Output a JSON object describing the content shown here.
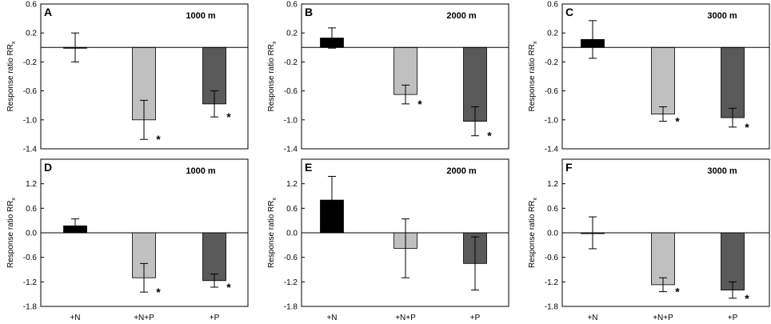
{
  "chart_data": {
    "type": "bar",
    "categories": [
      "+N",
      "+N+P",
      "+P"
    ],
    "ylabel": "Response ratio RR",
    "ylabel_subscript": "x",
    "bar_colors": [
      "#000000",
      "#c0c0c0",
      "#595959"
    ],
    "significance_marker": "*",
    "panels": [
      {
        "id": "A",
        "title": "1000 m",
        "ylim": [
          -1.4,
          0.6
        ],
        "yticks": [
          -1.4,
          -1.0,
          -0.6,
          -0.2,
          0.2,
          0.6
        ],
        "ytick_labels": [
          "-1.4",
          "-1.0",
          "-0.6",
          "-0.2",
          "0.2",
          "0.6"
        ],
        "values": [
          0.0,
          -1.0,
          -0.78
        ],
        "errors": [
          0.2,
          0.27,
          0.18
        ],
        "significant": [
          false,
          true,
          true
        ]
      },
      {
        "id": "B",
        "title": "2000 m",
        "ylim": [
          -1.4,
          0.6
        ],
        "yticks": [
          -1.4,
          -1.0,
          -0.6,
          -0.2,
          0.2,
          0.6
        ],
        "ytick_labels": [
          "-1.4",
          "-1.0",
          "-0.6",
          "-0.2",
          "0.2",
          "0.6"
        ],
        "values": [
          0.13,
          -0.65,
          -1.02
        ],
        "errors": [
          0.14,
          0.13,
          0.2
        ],
        "significant": [
          false,
          true,
          true
        ]
      },
      {
        "id": "C",
        "title": "3000 m",
        "ylim": [
          -1.4,
          0.6
        ],
        "yticks": [
          -1.4,
          -1.0,
          -0.6,
          -0.2,
          0.2,
          0.6
        ],
        "ytick_labels": [
          "-1.4",
          "-1.0",
          "-0.6",
          "-0.2",
          "0.2",
          "0.6"
        ],
        "values": [
          0.11,
          -0.92,
          -0.97
        ],
        "errors": [
          0.26,
          0.1,
          0.13
        ],
        "significant": [
          false,
          true,
          true
        ]
      },
      {
        "id": "D",
        "title": "1000 m",
        "ylim": [
          -1.8,
          1.8
        ],
        "yticks": [
          -1.8,
          -1.2,
          -0.6,
          0.0,
          0.6,
          1.2
        ],
        "ytick_labels": [
          "-1.8",
          "-1.2",
          "-0.6",
          "0.0",
          "0.6",
          "1.2"
        ],
        "values": [
          0.17,
          -1.1,
          -1.17
        ],
        "errors": [
          0.17,
          0.35,
          0.16
        ],
        "significant": [
          false,
          true,
          true
        ]
      },
      {
        "id": "E",
        "title": "2000 m",
        "ylim": [
          -1.8,
          1.8
        ],
        "yticks": [
          -1.8,
          -1.2,
          -0.6,
          0.0,
          0.6,
          1.2
        ],
        "ytick_labels": [
          "-1.8",
          "-1.2",
          "-0.6",
          "0.0",
          "0.6",
          "1.2"
        ],
        "values": [
          0.8,
          -0.38,
          -0.75
        ],
        "errors": [
          0.58,
          0.72,
          0.65
        ],
        "significant": [
          false,
          false,
          false
        ]
      },
      {
        "id": "F",
        "title": "3000 m",
        "ylim": [
          -1.8,
          1.8
        ],
        "yticks": [
          -1.8,
          -1.2,
          -0.6,
          0.0,
          0.6,
          1.2
        ],
        "ytick_labels": [
          "-1.8",
          "-1.2",
          "-0.6",
          "0.0",
          "0.6",
          "1.2"
        ],
        "values": [
          0.0,
          -1.27,
          -1.4
        ],
        "errors": [
          0.39,
          0.17,
          0.2
        ],
        "significant": [
          false,
          true,
          true
        ]
      }
    ]
  }
}
